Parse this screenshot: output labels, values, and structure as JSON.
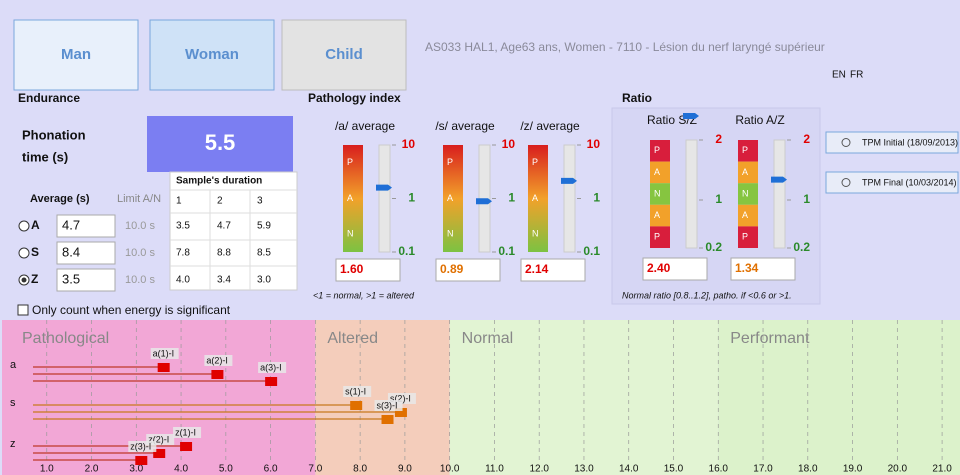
{
  "header": {
    "buttons": [
      "Man",
      "Woman",
      "Child"
    ],
    "title": "AS033 HAL1, Age63 ans, Women - 7110 - Lésion du nerf laryngé supérieur",
    "languages": [
      "EN",
      "FR"
    ]
  },
  "endurance": {
    "title": "Endurance",
    "phonation_label": [
      "Phonation",
      "time (s)"
    ],
    "phonation_value": "5.5",
    "average_label": "Average (s)",
    "limit_label": "Limit A/N",
    "rows": [
      {
        "option": "A",
        "average": "4.7",
        "limit": "10.0 s",
        "selected": false
      },
      {
        "option": "S",
        "average": "8.4",
        "limit": "10.0 s",
        "selected": false
      },
      {
        "option": "Z",
        "average": "3.5",
        "limit": "10.0 s",
        "selected": true
      }
    ],
    "samples": {
      "title": "Sample's duration",
      "columns": [
        "1",
        "2",
        "3"
      ],
      "rows": [
        [
          "3.5",
          "4.7",
          "5.9"
        ],
        [
          "7.8",
          "8.8",
          "8.5"
        ],
        [
          "4.0",
          "3.4",
          "3.0"
        ]
      ]
    },
    "checkbox": "Only count when energy is significant"
  },
  "pathology_index": {
    "title": "Pathology index",
    "zones": [
      "P",
      "A",
      "N"
    ],
    "ylim": [
      0.1,
      10
    ],
    "ticks": [
      10,
      1,
      0.1
    ],
    "log": true,
    "gauges": [
      {
        "label": "/a/ average",
        "value": 1.6,
        "value_label": "1.60",
        "color": "#e00000"
      },
      {
        "label": "/s/ average",
        "value": 0.89,
        "value_label": "0.89",
        "color": "#e07000"
      },
      {
        "label": "/z/ average",
        "value": 2.14,
        "value_label": "2.14",
        "color": "#e00000"
      }
    ],
    "note": "<1 = normal, >1 = altered"
  },
  "ratio": {
    "title": "Ratio",
    "zones": [
      "P",
      "A",
      "N",
      "A",
      "P"
    ],
    "ylim": [
      0.2,
      2
    ],
    "ticks": [
      2,
      1,
      0.2
    ],
    "log": false,
    "gauges": [
      {
        "label": "Ratio S/Z",
        "value": 2.4,
        "value_label": "2.40",
        "color": "#e00000"
      },
      {
        "label": "Ratio A/Z",
        "value": 1.34,
        "value_label": "1.34",
        "color": "#e07000"
      }
    ],
    "note": "Normal ratio [0.8..1.2], patho. if <0.6 or >1."
  },
  "tpm_buttons": [
    "TPM Initial (18/09/2013)",
    "TPM Final (10/03/2014)"
  ],
  "bottom_chart": {
    "type": "scatter",
    "xlim": [
      0,
      21.4
    ],
    "xticks": [
      {
        "value": 1,
        "label": "1.0"
      },
      {
        "value": 2,
        "label": "2.0"
      },
      {
        "value": 3,
        "label": "3.0"
      },
      {
        "value": 4,
        "label": "4.0"
      },
      {
        "value": 5,
        "label": "5.0"
      },
      {
        "value": 6,
        "label": "6.0"
      },
      {
        "value": 7,
        "label": "7.0"
      },
      {
        "value": 8,
        "label": "8.0"
      },
      {
        "value": 9,
        "label": "9.0"
      },
      {
        "value": 10,
        "label": "10.0"
      },
      {
        "value": 11,
        "label": "11.0"
      },
      {
        "value": 12,
        "label": "12.0"
      },
      {
        "value": 13,
        "label": "13.0"
      },
      {
        "value": 14,
        "label": "14.0"
      },
      {
        "value": 15,
        "label": "15.0"
      },
      {
        "value": 16,
        "label": "16.0"
      },
      {
        "value": 17,
        "label": "17.0"
      },
      {
        "value": 18,
        "label": "18.0"
      },
      {
        "value": 19,
        "label": "19.0"
      },
      {
        "value": 20,
        "label": "20.0"
      },
      {
        "value": 21,
        "label": "21.0"
      }
    ],
    "zones": [
      {
        "name": "Pathological",
        "from": 0,
        "to": 7,
        "color": "#f2a7d6"
      },
      {
        "name": "Altered",
        "from": 7,
        "to": 10,
        "color": "#f4cdbb"
      },
      {
        "name": "Normal",
        "from": 10,
        "to": 16,
        "color": "#e2f4d3"
      },
      {
        "name": "Performant",
        "from": 16,
        "to": 21.4,
        "color": "#dcf2cb"
      }
    ],
    "rows": [
      {
        "name": "a",
        "color": "#e00000",
        "line_color": "#c0392b",
        "points": [
          {
            "label": "a(1)-I",
            "x": 3.5
          },
          {
            "label": "a(2)-I",
            "x": 4.7
          },
          {
            "label": "a(3)-I",
            "x": 5.9
          }
        ]
      },
      {
        "name": "s",
        "color": "#e07000",
        "line_color": "#c8781e",
        "points": [
          {
            "label": "s(1)-I",
            "x": 7.8
          },
          {
            "label": "s(2)-I",
            "x": 8.8
          },
          {
            "label": "s(3)-I",
            "x": 8.5
          }
        ]
      },
      {
        "name": "z",
        "color": "#e00000",
        "line_color": "#c0392b",
        "points": [
          {
            "label": "z(1)-I",
            "x": 4.0
          },
          {
            "label": "z(2)-I",
            "x": 3.4
          },
          {
            "label": "z(3)-I",
            "x": 3.0
          }
        ]
      }
    ]
  }
}
